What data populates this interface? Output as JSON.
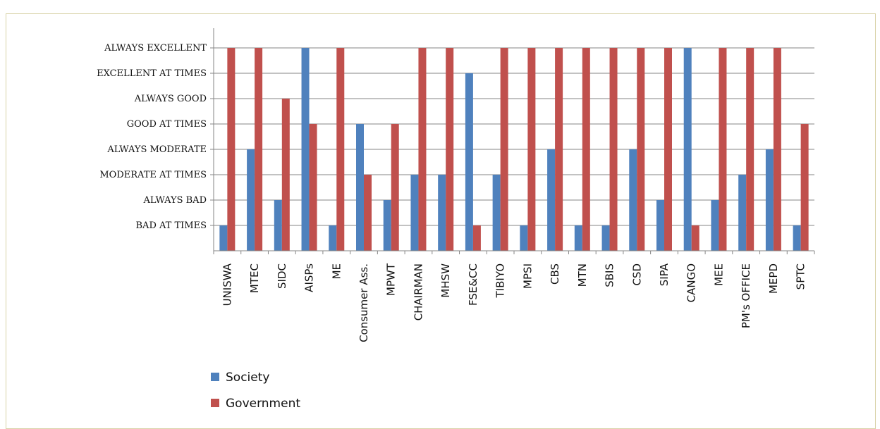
{
  "chart_data": {
    "type": "bar",
    "y_levels": [
      "",
      "BAD AT TIMES",
      "ALWAYS BAD",
      "MODERATE AT TIMES",
      "ALWAYS MODERATE",
      "GOOD AT TIMES",
      "ALWAYS GOOD",
      "EXCELLENT AT TIMES",
      "ALWAYS EXCELLENT"
    ],
    "ylim": [
      0,
      8
    ],
    "grid": true,
    "legend_position": "bottom-left",
    "categories": [
      "UNISWA",
      "MTEC",
      "SIDC",
      "AISPs",
      "ME",
      "Consumer Ass.",
      "MPWT",
      "CHAIRMAN",
      "MHSW",
      "FSE&CC",
      "TIBIYO",
      "MPSI",
      "CBS",
      "MTN",
      "SBIS",
      "CSD",
      "SIPA",
      "CANGO",
      "MEE",
      "PM's OFFICE",
      "MEPD",
      "SPTC"
    ],
    "series": [
      {
        "name": "Society",
        "color": "#4f81bd",
        "values": [
          1,
          4,
          2,
          8,
          1,
          5,
          2,
          3,
          3,
          7,
          3,
          1,
          4,
          1,
          1,
          4,
          2,
          8,
          2,
          3,
          4,
          1
        ]
      },
      {
        "name": "Government",
        "color": "#c0504d",
        "values": [
          8,
          8,
          6,
          5,
          8,
          3,
          5,
          8,
          8,
          1,
          8,
          8,
          8,
          8,
          8,
          8,
          8,
          1,
          8,
          8,
          8,
          5
        ]
      }
    ]
  }
}
